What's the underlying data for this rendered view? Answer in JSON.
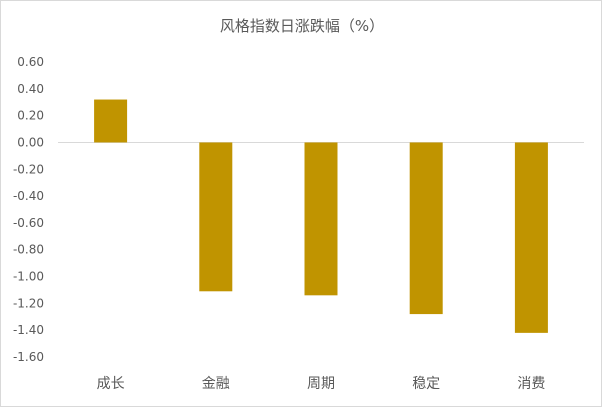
{
  "chart_data": {
    "type": "bar",
    "title": "风格指数日涨跌幅（%）",
    "categories": [
      "成长",
      "金融",
      "周期",
      "稳定",
      "消费"
    ],
    "values": [
      0.32,
      -1.11,
      -1.14,
      -1.28,
      -1.42
    ],
    "ylim": [
      -1.6,
      0.6
    ],
    "yticks": [
      "0.60",
      "0.40",
      "0.20",
      "0.00",
      "-0.20",
      "-0.40",
      "-0.60",
      "-0.80",
      "-1.00",
      "-1.20",
      "-1.40",
      "-1.60"
    ],
    "grid": false,
    "legend": "none",
    "bar_color": "#C09400",
    "axis_color": "#d9d9d9"
  }
}
